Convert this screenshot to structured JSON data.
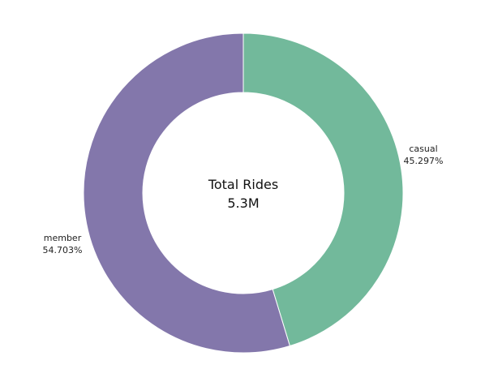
{
  "chart_data": {
    "type": "pie",
    "donut": true,
    "center_title": "Total Rides",
    "center_value": "5.3M",
    "start": "top",
    "direction": "clockwise",
    "legend": "none",
    "slices": [
      {
        "category": "casual",
        "value": 45.297,
        "label": "45.297%",
        "color": "#72b99b"
      },
      {
        "category": "member",
        "value": 54.703,
        "label": "54.703%",
        "color": "#8377ab"
      }
    ]
  }
}
